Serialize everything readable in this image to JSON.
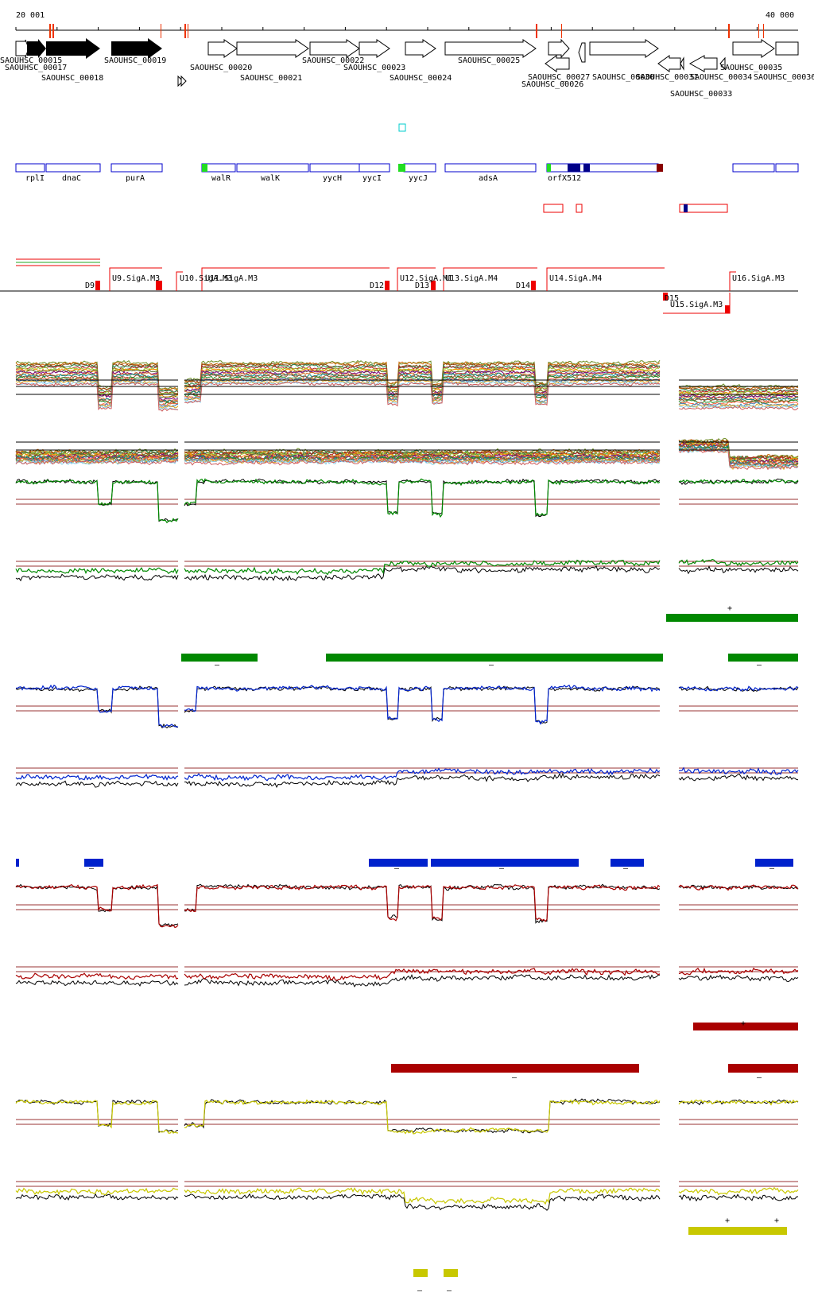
{
  "ruler": {
    "start_label": "20 001",
    "end_label": "40 000"
  },
  "genes_top": [
    {
      "id": "SAOUHSC_00015"
    },
    {
      "id": "SAOUHSC_00017"
    },
    {
      "id": "SAOUHSC_00018"
    },
    {
      "id": "SAOUHSC_00019"
    },
    {
      "id": "SAOUHSC_00020"
    },
    {
      "id": "SAOUHSC_00021"
    },
    {
      "id": "SAOUHSC_00022"
    },
    {
      "id": "SAOUHSC_00023"
    },
    {
      "id": "SAOUHSC_00024"
    },
    {
      "id": "SAOUHSC_00025"
    },
    {
      "id": "SAOUHSC_00026"
    },
    {
      "id": "SAOUHSC_00027"
    },
    {
      "id": "SAOUHSC_00030"
    },
    {
      "id": "SAOUHSC_00031"
    },
    {
      "id": "SAOUHSC_00033"
    },
    {
      "id": "SAOUHSC_00034"
    },
    {
      "id": "SAOUHSC_00035"
    },
    {
      "id": "SAOUHSC_00036"
    }
  ],
  "gene_names": [
    "rplI",
    "dnaC",
    "purA",
    "walR",
    "walK",
    "yycH",
    "yycI",
    "yycJ",
    "adsA",
    "orfX512"
  ],
  "promoters": {
    "up": [
      "U9.SigA.M3",
      "U10.SigA.M3",
      "U11.SigA.M3",
      "U12.SigA.M1",
      "U13.SigA.M4",
      "U14.SigA.M4",
      "U15.SigA.M3",
      "U16.SigA.M3"
    ],
    "down": [
      "D9",
      "D12",
      "D13",
      "D14",
      "D15"
    ]
  },
  "strand_marks": {
    "plus": "+",
    "minus": "–"
  },
  "colors": {
    "gene_fill": "#000000",
    "gene_outline": "#000000",
    "annotation_blue": "#0000cc",
    "promoter_red": "#ee0000",
    "track_green": "#008800",
    "track_blue": "#0022cc",
    "track_red": "#aa0000",
    "track_yellow": "#c8c800",
    "threshold_line": "#993333"
  }
}
